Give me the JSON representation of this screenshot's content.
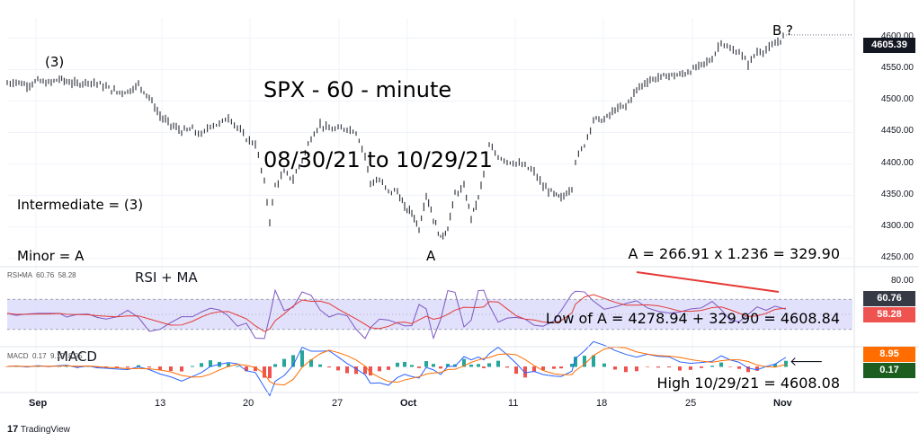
{
  "chart_data": {
    "type": "line",
    "title": "SPX - 60 - minute",
    "subtitle": "08/30/21 to 10/29/21",
    "price_axis": {
      "ylim": [
        4238,
        4632
      ],
      "ticks": [
        "4250.00",
        "4300.00",
        "4350.00",
        "4400.00",
        "4450.00",
        "4500.00",
        "4550.00",
        "4600.00"
      ],
      "last_price": "4605.39"
    },
    "x_ticks": [
      "Sep",
      "13",
      "20",
      "27",
      "Oct",
      "11",
      "18",
      "25",
      "Nov"
    ],
    "price_points": [
      {
        "x": 0,
        "y": 4528
      },
      {
        "x": 10,
        "y": 4531
      },
      {
        "x": 22,
        "y": 4525
      },
      {
        "x": 34,
        "y": 4532
      },
      {
        "x": 46,
        "y": 4528
      },
      {
        "x": 58,
        "y": 4535
      },
      {
        "x": 66,
        "y": 4531
      },
      {
        "x": 78,
        "y": 4527
      },
      {
        "x": 90,
        "y": 4531
      },
      {
        "x": 100,
        "y": 4528
      },
      {
        "x": 110,
        "y": 4522
      },
      {
        "x": 122,
        "y": 4514
      },
      {
        "x": 134,
        "y": 4515
      },
      {
        "x": 146,
        "y": 4526
      },
      {
        "x": 158,
        "y": 4506
      },
      {
        "x": 170,
        "y": 4476
      },
      {
        "x": 182,
        "y": 4462
      },
      {
        "x": 194,
        "y": 4452
      },
      {
        "x": 206,
        "y": 4455
      },
      {
        "x": 216,
        "y": 4445
      },
      {
        "x": 226,
        "y": 4462
      },
      {
        "x": 236,
        "y": 4463
      },
      {
        "x": 246,
        "y": 4475
      },
      {
        "x": 256,
        "y": 4458
      },
      {
        "x": 266,
        "y": 4440
      },
      {
        "x": 276,
        "y": 4432
      },
      {
        "x": 286,
        "y": 4370
      },
      {
        "x": 292,
        "y": 4310
      },
      {
        "x": 298,
        "y": 4365
      },
      {
        "x": 308,
        "y": 4386
      },
      {
        "x": 318,
        "y": 4376
      },
      {
        "x": 328,
        "y": 4407
      },
      {
        "x": 338,
        "y": 4442
      },
      {
        "x": 348,
        "y": 4463
      },
      {
        "x": 358,
        "y": 4455
      },
      {
        "x": 368,
        "y": 4455
      },
      {
        "x": 378,
        "y": 4457
      },
      {
        "x": 388,
        "y": 4451
      },
      {
        "x": 398,
        "y": 4413
      },
      {
        "x": 404,
        "y": 4370
      },
      {
        "x": 414,
        "y": 4374
      },
      {
        "x": 424,
        "y": 4356
      },
      {
        "x": 434,
        "y": 4357
      },
      {
        "x": 442,
        "y": 4330
      },
      {
        "x": 450,
        "y": 4323
      },
      {
        "x": 458,
        "y": 4297
      },
      {
        "x": 466,
        "y": 4352
      },
      {
        "x": 474,
        "y": 4313
      },
      {
        "x": 482,
        "y": 4282
      },
      {
        "x": 490,
        "y": 4298
      },
      {
        "x": 498,
        "y": 4352
      },
      {
        "x": 508,
        "y": 4363
      },
      {
        "x": 516,
        "y": 4315
      },
      {
        "x": 524,
        "y": 4346
      },
      {
        "x": 530,
        "y": 4385
      },
      {
        "x": 536,
        "y": 4428
      },
      {
        "x": 546,
        "y": 4412
      },
      {
        "x": 556,
        "y": 4405
      },
      {
        "x": 566,
        "y": 4401
      },
      {
        "x": 576,
        "y": 4396
      },
      {
        "x": 586,
        "y": 4387
      },
      {
        "x": 596,
        "y": 4364
      },
      {
        "x": 608,
        "y": 4352
      },
      {
        "x": 616,
        "y": 4345
      },
      {
        "x": 628,
        "y": 4363
      },
      {
        "x": 632,
        "y": 4405
      },
      {
        "x": 642,
        "y": 4431
      },
      {
        "x": 652,
        "y": 4471
      },
      {
        "x": 664,
        "y": 4470
      },
      {
        "x": 676,
        "y": 4486
      },
      {
        "x": 688,
        "y": 4492
      },
      {
        "x": 700,
        "y": 4518
      },
      {
        "x": 712,
        "y": 4532
      },
      {
        "x": 724,
        "y": 4537
      },
      {
        "x": 736,
        "y": 4541
      },
      {
        "x": 748,
        "y": 4541
      },
      {
        "x": 760,
        "y": 4548
      },
      {
        "x": 772,
        "y": 4557
      },
      {
        "x": 784,
        "y": 4567
      },
      {
        "x": 794,
        "y": 4595
      },
      {
        "x": 804,
        "y": 4581
      },
      {
        "x": 814,
        "y": 4578
      },
      {
        "x": 824,
        "y": 4559
      },
      {
        "x": 834,
        "y": 4578
      },
      {
        "x": 844,
        "y": 4581
      },
      {
        "x": 854,
        "y": 4590
      },
      {
        "x": 866,
        "y": 4605
      }
    ],
    "rsi": {
      "label": "RSI•MA",
      "rsi_value": "60.76",
      "ma_value": "58.28",
      "upper_level": "80.00",
      "band": [
        30,
        70
      ]
    },
    "macd": {
      "label": "MACD",
      "hist_value": "0.17",
      "macd_value": "9.12",
      "signal_value": "8.95"
    },
    "colors": {
      "rsi": "#7e57c2",
      "ma": "#e53935",
      "band": "#d4d4fb",
      "macd_line": "#2962ff",
      "signal_line": "#ff6d00",
      "hist_pos": "#26a69a",
      "hist_neg": "#ef5350",
      "divergence": "#e53935",
      "badge_ma": "#ef5350",
      "badge_rsi": "#363a45",
      "badge_signal": "#ff6d00",
      "badge_hist": "#1b5e20"
    }
  },
  "annotations": {
    "title_line1": "SPX - 60 - minute",
    "title_line2": "08/30/21 to 10/29/21",
    "wave_3": "(3)",
    "wave_A": "A",
    "wave_B": "B ?",
    "degree_line1": "Intermediate = (3)",
    "degree_line2": "Minor = A",
    "calc_line1": "A = 266.91 x 1.236 = 329.90",
    "calc_line2": "Low of A = 4278.94 + 329.90 = 4608.84",
    "calc_line3": "High 10/29/21 = 4608.08",
    "rsi_panel_label": "RSI + MA",
    "macd_panel_label": "MACD",
    "arrow": "🡐"
  },
  "legend": {
    "rsi_small": "RSI•MA  60.76  58.28",
    "macd_small": "MACD  0.17  9.12  8.95"
  },
  "branding": {
    "logo_text": "TradingView"
  }
}
